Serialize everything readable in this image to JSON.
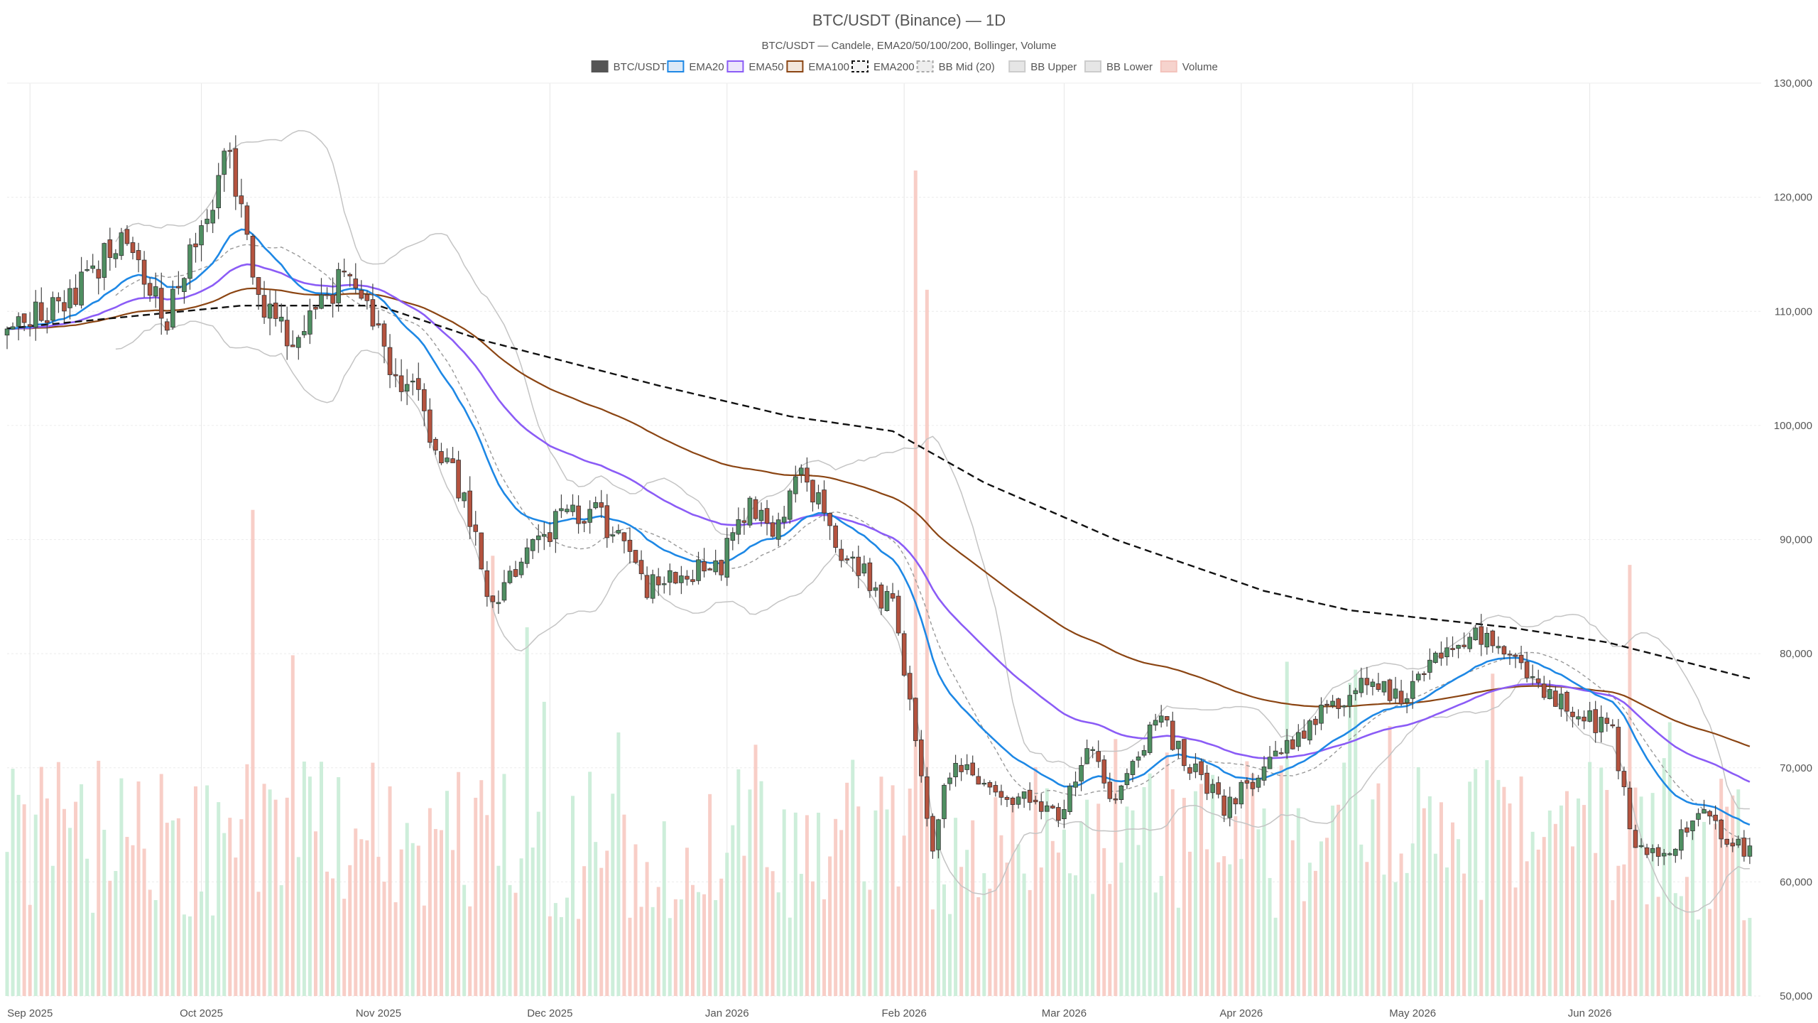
{
  "chart_data": {
    "type": "candlestick",
    "title": "BTC/USDT (Binance) — 1D",
    "subtitle": "BTC/USDT — Candele, EMA20/50/100/200, Bollinger, Volume",
    "legend": {
      "placement": "top-center",
      "items": [
        {
          "label": "BTC/USDT",
          "swatch": "box",
          "color": "#555555",
          "fill": "#555555"
        },
        {
          "label": "EMA20",
          "swatch": "box",
          "color": "#1e88e5",
          "fill": "#dbe9f7"
        },
        {
          "label": "EMA50",
          "swatch": "box",
          "color": "#8b5cf6",
          "fill": "#ece6fb"
        },
        {
          "label": "EMA100",
          "swatch": "box",
          "color": "#8b4513",
          "fill": "#f3e7dc"
        },
        {
          "label": "EMA200",
          "swatch": "dashed",
          "color": "#111111",
          "fill": "#f4f4f4"
        },
        {
          "label": "BB Mid (20)",
          "swatch": "dashed",
          "color": "#aaaaaa",
          "fill": "#eeeeee"
        },
        {
          "label": "BB Upper",
          "swatch": "box",
          "color": "#cccccc",
          "fill": "#e6e6e6"
        },
        {
          "label": "BB Lower",
          "swatch": "box",
          "color": "#cccccc",
          "fill": "#e6e6e6"
        },
        {
          "label": "Volume",
          "swatch": "box",
          "color": "#f3c3bc",
          "fill": "#f6d3cd"
        }
      ]
    },
    "x_ticks": [
      "Sep 2025",
      "Oct 2025",
      "Nov 2025",
      "Dec 2025",
      "Jan 2026",
      "Feb 2026",
      "Mar 2026",
      "Apr 2026",
      "May 2026",
      "Jun 2026"
    ],
    "y_ticks": [
      "50,000",
      "60,000",
      "70,000",
      "80,000",
      "90,000",
      "100,000",
      "110,000",
      "120,000",
      "130,000"
    ],
    "y_tick_values": [
      50000,
      60000,
      70000,
      80000,
      90000,
      100000,
      110000,
      120000,
      130000
    ],
    "ylim": [
      50000,
      130000
    ],
    "grid": true,
    "colors": {
      "up": "#4f8f62",
      "down": "#b5533f",
      "vol_up": "#c8ecd6",
      "vol_down": "#f7c9c1",
      "ema20": "#1e88e5",
      "ema50": "#8b5cf6",
      "ema100": "#8b4513",
      "ema200": "#111111",
      "bb": "#c4c4c4",
      "bb_mid": "#999999",
      "grid": "#ececec"
    },
    "price_anchors": [
      {
        "x": "2025-08-28",
        "y": 108000
      },
      {
        "x": "2025-09-08",
        "y": 111000
      },
      {
        "x": "2025-09-18",
        "y": 117000
      },
      {
        "x": "2025-09-25",
        "y": 109500
      },
      {
        "x": "2025-10-02",
        "y": 118000
      },
      {
        "x": "2025-10-06",
        "y": 124500
      },
      {
        "x": "2025-10-10",
        "y": 112500
      },
      {
        "x": "2025-10-17",
        "y": 107000
      },
      {
        "x": "2025-10-27",
        "y": 114000
      },
      {
        "x": "2025-11-04",
        "y": 104000
      },
      {
        "x": "2025-11-07",
        "y": 103000
      },
      {
        "x": "2025-11-15",
        "y": 94500
      },
      {
        "x": "2025-11-21",
        "y": 84500
      },
      {
        "x": "2025-12-02",
        "y": 91500
      },
      {
        "x": "2025-12-09",
        "y": 92500
      },
      {
        "x": "2025-12-18",
        "y": 86000
      },
      {
        "x": "2025-12-31",
        "y": 88000
      },
      {
        "x": "2026-01-05",
        "y": 93500
      },
      {
        "x": "2026-01-10",
        "y": 90500
      },
      {
        "x": "2026-01-14",
        "y": 96500
      },
      {
        "x": "2026-01-20",
        "y": 89500
      },
      {
        "x": "2026-01-30",
        "y": 84000
      },
      {
        "x": "2026-02-06",
        "y": 63500
      },
      {
        "x": "2026-02-09",
        "y": 70000
      },
      {
        "x": "2026-02-20",
        "y": 67500
      },
      {
        "x": "2026-02-28",
        "y": 66000
      },
      {
        "x": "2026-03-05",
        "y": 72000
      },
      {
        "x": "2026-03-10",
        "y": 67000
      },
      {
        "x": "2026-03-17",
        "y": 74500
      },
      {
        "x": "2026-03-29",
        "y": 66500
      },
      {
        "x": "2026-04-03",
        "y": 69000
      },
      {
        "x": "2026-04-14",
        "y": 74500
      },
      {
        "x": "2026-04-22",
        "y": 77500
      },
      {
        "x": "2026-04-28",
        "y": 76000
      },
      {
        "x": "2026-05-12",
        "y": 82000
      },
      {
        "x": "2026-05-25",
        "y": 76500
      },
      {
        "x": "2026-06-05",
        "y": 73000
      },
      {
        "x": "2026-06-09",
        "y": 63000
      },
      {
        "x": "2026-06-14",
        "y": 62000
      },
      {
        "x": "2026-06-20",
        "y": 66500
      },
      {
        "x": "2026-06-25",
        "y": 64000
      },
      {
        "x": "2026-06-29",
        "y": 62500
      }
    ],
    "ema200_anchors": [
      {
        "x": "2025-08-28",
        "y": 108500
      },
      {
        "x": "2025-10-08",
        "y": 110500
      },
      {
        "x": "2025-11-01",
        "y": 110500
      },
      {
        "x": "2025-11-19",
        "y": 107500
      },
      {
        "x": "2025-12-20",
        "y": 103500
      },
      {
        "x": "2026-01-12",
        "y": 100800
      },
      {
        "x": "2026-01-30",
        "y": 99500
      },
      {
        "x": "2026-02-15",
        "y": 95000
      },
      {
        "x": "2026-03-10",
        "y": 90000
      },
      {
        "x": "2026-04-05",
        "y": 85500
      },
      {
        "x": "2026-04-20",
        "y": 83800
      },
      {
        "x": "2026-05-18",
        "y": 82300
      },
      {
        "x": "2026-06-04",
        "y": 81000
      },
      {
        "x": "2026-06-30",
        "y": 77700
      }
    ],
    "volume_range": [
      0,
      90000
    ],
    "volume_peaks": [
      {
        "x": "2025-10-10",
        "v": 53000
      },
      {
        "x": "2025-11-21",
        "v": 48000
      },
      {
        "x": "2026-02-03",
        "v": 90000
      },
      {
        "x": "2026-02-05",
        "v": 77000
      },
      {
        "x": "2026-06-08",
        "v": 47000
      }
    ],
    "x_range": [
      "2025-08-28",
      "2026-07-01"
    ]
  }
}
